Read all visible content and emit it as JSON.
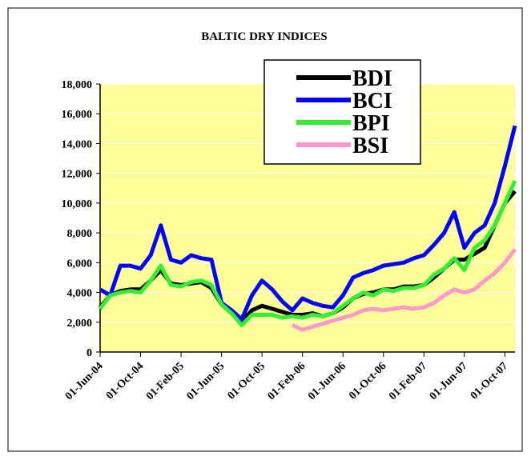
{
  "chart_data": {
    "type": "line",
    "title": "BALTIC DRY INDICES",
    "categories": [
      "01-Jun-04",
      null,
      null,
      null,
      "01-Oct-04",
      null,
      null,
      null,
      "01-Feb-05",
      null,
      null,
      null,
      "01-Jun-05",
      null,
      null,
      null,
      "01-Oct-05",
      null,
      null,
      null,
      "01-Feb-06",
      null,
      null,
      null,
      "01-Jun-06",
      null,
      null,
      null,
      "01-Oct-06",
      null,
      null,
      null,
      "01-Feb-07",
      null,
      null,
      null,
      "01-Jun-07",
      null,
      null,
      null,
      "01-Oct-07",
      null
    ],
    "series": [
      {
        "name": "BDI",
        "color": "#000000",
        "values": [
          3000,
          3800,
          4100,
          4200,
          4200,
          4800,
          5500,
          4600,
          4500,
          4600,
          4700,
          4300,
          3200,
          2600,
          2000,
          2800,
          3100,
          2900,
          2700,
          2500,
          2500,
          2600,
          2400,
          2600,
          3000,
          3600,
          3900,
          4000,
          4200,
          4200,
          4400,
          4400,
          4500,
          5000,
          5600,
          6200,
          6200,
          6600,
          7000,
          8500,
          10000,
          10800
        ]
      },
      {
        "name": "BCI",
        "color": "#0000ff",
        "values": [
          4200,
          3800,
          5800,
          5800,
          5600,
          6500,
          8500,
          6200,
          6000,
          6500,
          6300,
          6200,
          3300,
          2800,
          2200,
          3800,
          4800,
          4200,
          3400,
          2800,
          3600,
          3300,
          3100,
          3000,
          3800,
          5000,
          5300,
          5500,
          5800,
          5900,
          6000,
          6300,
          6500,
          7200,
          8000,
          9400,
          7000,
          8000,
          8500,
          10000,
          12500,
          15200
        ]
      },
      {
        "name": "BPI",
        "color": "#33ee33",
        "values": [
          2900,
          3800,
          4000,
          4100,
          4000,
          4800,
          5800,
          4500,
          4400,
          4700,
          4800,
          4500,
          3200,
          2600,
          1800,
          2500,
          2500,
          2500,
          2300,
          2400,
          2300,
          2500,
          2400,
          2600,
          3100,
          3600,
          4000,
          3800,
          4200,
          4100,
          4300,
          4300,
          4500,
          5200,
          5600,
          6300,
          5500,
          7000,
          7500,
          8500,
          10000,
          11500
        ]
      },
      {
        "name": "BSI",
        "color": "#ff99cc",
        "values": [
          null,
          null,
          null,
          null,
          null,
          null,
          null,
          null,
          null,
          null,
          null,
          null,
          null,
          null,
          null,
          null,
          null,
          null,
          null,
          1800,
          1500,
          1700,
          1900,
          2100,
          2300,
          2500,
          2800,
          2900,
          2800,
          2900,
          3000,
          2900,
          3000,
          3300,
          3800,
          4200,
          4000,
          4200,
          4800,
          5300,
          6000,
          6900
        ]
      }
    ],
    "ylim": [
      0,
      18000
    ],
    "yticks": [
      0,
      {
        "value": 2000,
        "label": "2,000"
      },
      {
        "value": 4000,
        "label": "4,000"
      },
      {
        "value": 6000,
        "label": "6,000"
      },
      {
        "value": 8000,
        "label": "8,000"
      },
      {
        "value": 10000,
        "label": "10,000"
      },
      {
        "value": 12000,
        "label": "12,000"
      },
      {
        "value": 14000,
        "label": "14,000"
      },
      {
        "value": 16000,
        "label": "16,000"
      },
      {
        "value": 18000,
        "label": "18,000"
      }
    ],
    "grid": true,
    "plot_background": "#ffff99",
    "legend": "top"
  }
}
